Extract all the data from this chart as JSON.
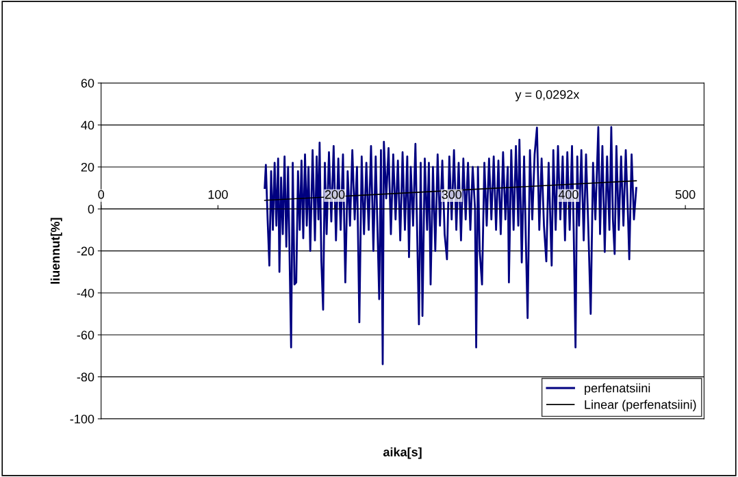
{
  "chart_data": {
    "type": "line",
    "xlabel": "aika[s]",
    "ylabel": "liuennut[%]",
    "annotations": [
      "y = 0,0292x"
    ],
    "xlim": [
      0,
      516
    ],
    "xticks": [
      0,
      100,
      200,
      300,
      400,
      500
    ],
    "ylim": [
      -100,
      60
    ],
    "yticks": [
      -100,
      -80,
      -60,
      -40,
      -20,
      0,
      20,
      40,
      60
    ],
    "grid": "y",
    "legend": "bottom right",
    "marker": "none",
    "line_style": "solid",
    "series": [
      {
        "name": "perfenatsiini",
        "color": "#000080",
        "x": [
          140,
          141,
          142.5,
          144,
          145.5,
          147,
          148.5,
          150,
          151.5,
          152.6,
          154,
          155.5,
          157,
          158.5,
          160,
          162.6,
          164,
          165.5,
          167,
          168.5,
          170,
          171.5,
          173,
          174.5,
          176,
          177.5,
          179,
          181,
          183,
          184.5,
          186,
          187,
          188.5,
          190,
          191.5,
          193,
          195,
          197,
          199,
          201,
          203,
          205,
          207,
          209,
          211,
          213,
          215,
          217,
          219,
          221,
          223,
          225,
          227,
          229,
          231,
          233,
          235,
          238,
          239.5,
          241,
          242,
          244,
          246,
          248,
          250,
          252,
          254,
          256,
          258,
          260,
          262,
          263.5,
          265,
          267,
          269,
          272,
          273.5,
          275,
          277,
          279,
          280.5,
          282,
          284,
          286,
          288,
          290,
          292,
          294,
          296,
          298,
          300,
          302,
          304,
          306,
          308,
          310,
          312,
          314,
          316,
          318,
          320,
          321,
          322.5,
          324,
          326,
          328,
          330,
          332,
          334,
          336,
          338,
          340,
          342,
          344,
          346,
          348,
          349,
          351,
          353,
          355,
          357,
          358,
          360,
          362,
          363.5,
          365,
          367,
          369,
          371,
          373,
          375,
          377,
          379,
          381,
          383,
          385.6,
          387,
          389,
          391,
          393,
          395,
          397,
          399,
          401,
          403,
          404.5,
          406,
          407.5,
          409,
          411,
          413,
          415,
          417,
          419,
          421,
          423,
          425.5,
          427,
          429,
          431,
          433,
          435,
          436.6,
          438,
          439.5,
          441,
          443,
          445,
          447,
          449,
          451,
          452,
          454,
          456,
          458
        ],
        "values": [
          10,
          21,
          -5,
          -27,
          18,
          -10,
          22,
          -8,
          24,
          -30,
          15,
          -12,
          25,
          -18,
          20,
          -66,
          22,
          -36,
          -35,
          18,
          -10,
          23,
          -14,
          26,
          -8,
          20,
          -20,
          28,
          -15,
          25,
          -5,
          31.6,
          -25,
          -48,
          22,
          -12,
          27,
          -6,
          30,
          -15,
          24,
          -10,
          26,
          -35,
          18,
          -8,
          28,
          -5,
          20,
          -54,
          25,
          -12,
          22,
          -10,
          30,
          -20,
          25,
          -43,
          28,
          -74,
          32,
          5,
          29,
          -12,
          26,
          -5,
          23,
          -15,
          27,
          -10,
          25,
          -23,
          20,
          -8,
          31,
          -55,
          22,
          -51,
          24,
          -10,
          22,
          -36,
          20,
          -20,
          26,
          -8,
          23,
          -12,
          -24,
          25,
          -5,
          28,
          -10,
          22,
          -15,
          24,
          -5,
          22,
          -10,
          20,
          0,
          -66,
          20,
          -20,
          -36,
          22,
          -8,
          24,
          -5,
          25,
          -10,
          23,
          -12,
          27,
          -5,
          20,
          -35,
          28,
          -10,
          30,
          -8,
          33,
          -25.5,
          25,
          -15,
          -52,
          28,
          -5,
          26,
          38.8,
          -10,
          24,
          -8,
          -25,
          22,
          -27,
          28,
          -10,
          30,
          -5,
          25,
          -15,
          27,
          -10,
          30,
          -12,
          -66,
          25,
          -8,
          28,
          -15,
          26,
          -10,
          -50,
          22,
          -5,
          39,
          -12,
          30,
          -20.5,
          25,
          -10,
          39,
          -5,
          -21.5,
          30,
          -10,
          25,
          -8,
          28,
          -5,
          -24,
          26,
          -5,
          10
        ]
      },
      {
        "name": "Linear (perfenatsiini)",
        "color": "#000000",
        "x": [
          140,
          458
        ],
        "values": [
          4.1,
          13.4
        ]
      }
    ]
  }
}
